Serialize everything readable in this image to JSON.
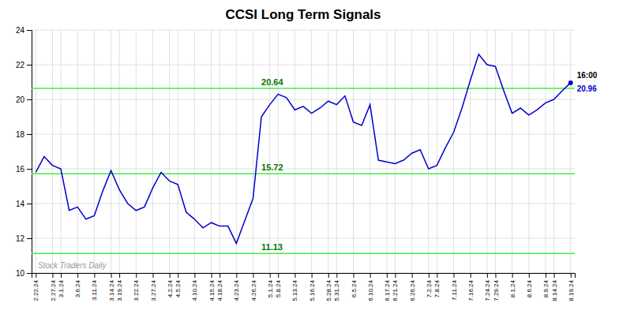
{
  "chart_data": {
    "type": "line",
    "title": "CCSI Long Term Signals",
    "categories": [
      "2.22.24",
      null,
      "2.27.24",
      "3.1.24",
      null,
      "3.6.24",
      null,
      "3.11.24",
      null,
      "3.14.24",
      "3.19.24",
      null,
      "3.22.24",
      null,
      "3.27.24",
      null,
      "4.2.24",
      "4.5.24",
      null,
      "4.10.24",
      null,
      "4.15.24",
      "4.18.24",
      null,
      "4.23.24",
      null,
      "4.26.24",
      null,
      "5.1.24",
      "5.8.24",
      null,
      "5.13.24",
      null,
      "5.16.24",
      null,
      "5.28.24",
      "5.31.24",
      null,
      "6.5.24",
      null,
      "6.10.24",
      null,
      "6.17.24",
      "6.21.24",
      null,
      "6.26.24",
      null,
      "7.2.24",
      "7.8.24",
      null,
      "7.11.24",
      null,
      "7.16.24",
      null,
      "7.24.24",
      "7.29.24",
      null,
      "8.1.24",
      null,
      "8.6.24",
      null,
      "8.9.24",
      "8.14.24",
      null,
      "8.19.24"
    ],
    "values": [
      15.8,
      16.7,
      16.2,
      16.0,
      13.6,
      13.8,
      13.1,
      13.3,
      14.7,
      15.9,
      14.8,
      14.0,
      13.6,
      13.8,
      14.9,
      15.8,
      15.3,
      15.1,
      13.5,
      13.1,
      12.6,
      12.9,
      12.7,
      12.7,
      11.7,
      13.0,
      14.3,
      19.0,
      19.7,
      20.3,
      20.1,
      19.4,
      19.6,
      19.2,
      19.5,
      19.9,
      19.7,
      20.2,
      18.7,
      18.5,
      19.7,
      16.5,
      16.4,
      16.3,
      16.5,
      16.9,
      17.1,
      16.0,
      16.2,
      17.2,
      18.1,
      19.5,
      21.1,
      22.6,
      22.0,
      21.9,
      20.5,
      19.2,
      19.5,
      19.1,
      19.4,
      19.8,
      20.0,
      20.5,
      20.96
    ],
    "color": "#0000cc",
    "hlines": [
      20.64,
      15.72,
      11.13
    ],
    "hline_color": "#44ee44",
    "hline_label_color": "#007700",
    "end_label": "16:00",
    "watermark": "Stock Traders Daily",
    "ylim": [
      10,
      24
    ],
    "yticks": [
      10,
      12,
      14,
      16,
      18,
      20,
      22,
      24
    ],
    "grid": true
  }
}
